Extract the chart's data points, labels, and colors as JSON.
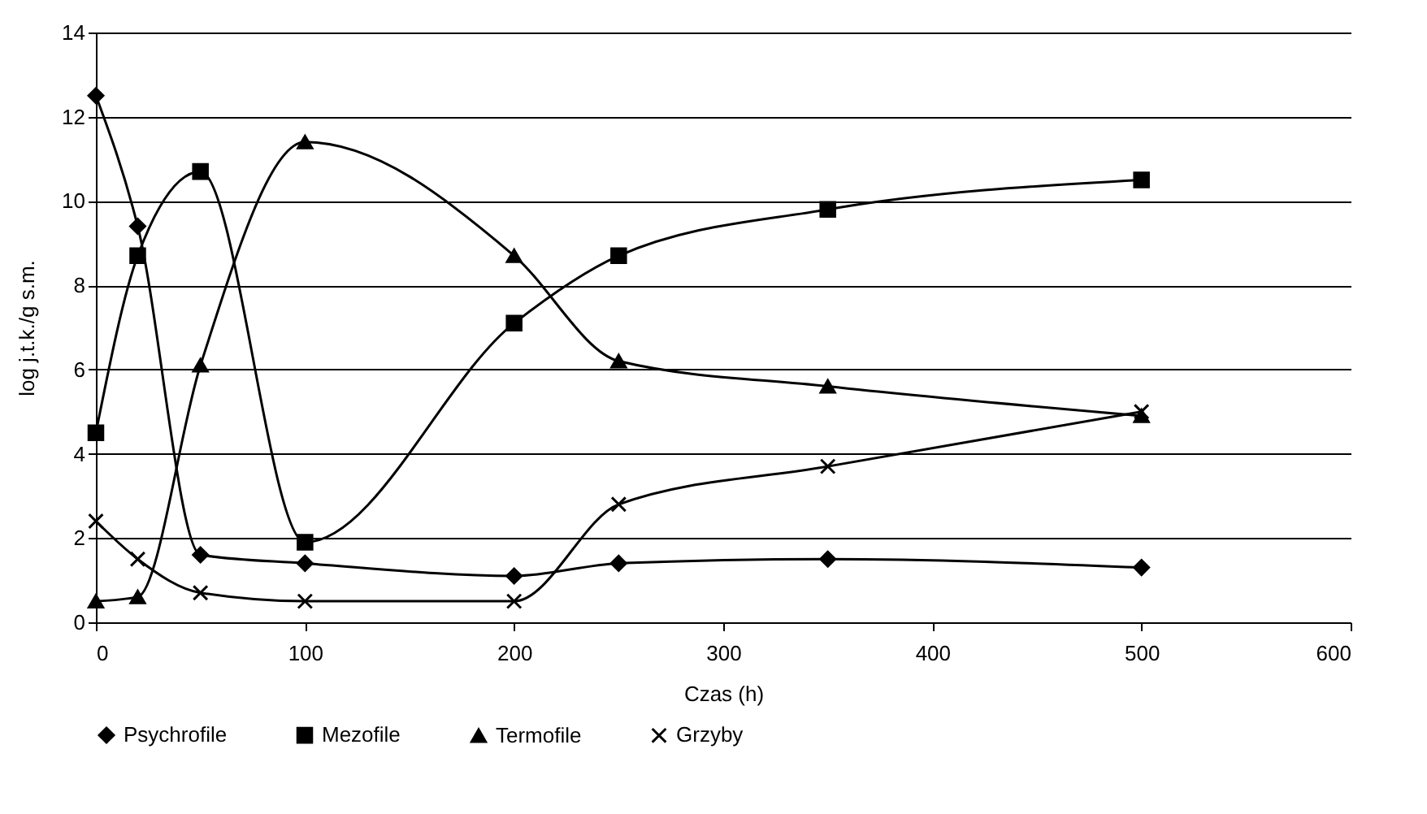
{
  "chart_data": {
    "type": "line",
    "xlabel": "Czas (h)",
    "ylabel": "log j.t.k./g s.m.",
    "x": [
      0,
      20,
      50,
      100,
      200,
      250,
      350,
      500
    ],
    "series": [
      {
        "name": "Psychrofile",
        "color": "#000000",
        "marker": "diamond",
        "values": [
          12.5,
          9.4,
          1.6,
          1.4,
          1.1,
          1.4,
          1.5,
          1.3
        ]
      },
      {
        "name": "Mezofile",
        "color": "#000000",
        "marker": "square",
        "values": [
          4.5,
          8.7,
          10.7,
          1.9,
          7.1,
          8.7,
          9.8,
          10.5
        ]
      },
      {
        "name": "Termofile",
        "color": "#000000",
        "marker": "triangle",
        "values": [
          0.5,
          0.6,
          6.1,
          11.4,
          8.7,
          6.2,
          5.6,
          4.9
        ]
      },
      {
        "name": "Grzyby",
        "color": "#000000",
        "marker": "cross",
        "values": [
          2.4,
          1.5,
          0.7,
          0.5,
          0.5,
          2.8,
          3.7,
          5.0
        ]
      }
    ],
    "xlim": [
      0,
      600
    ],
    "xticks": [
      0,
      100,
      200,
      300,
      400,
      500,
      600
    ],
    "ylim": [
      0,
      14
    ],
    "yticks": [
      0,
      2,
      4,
      6,
      8,
      10,
      12,
      14
    ],
    "grid": "y",
    "legend": "bottom",
    "line_style": "solid"
  }
}
